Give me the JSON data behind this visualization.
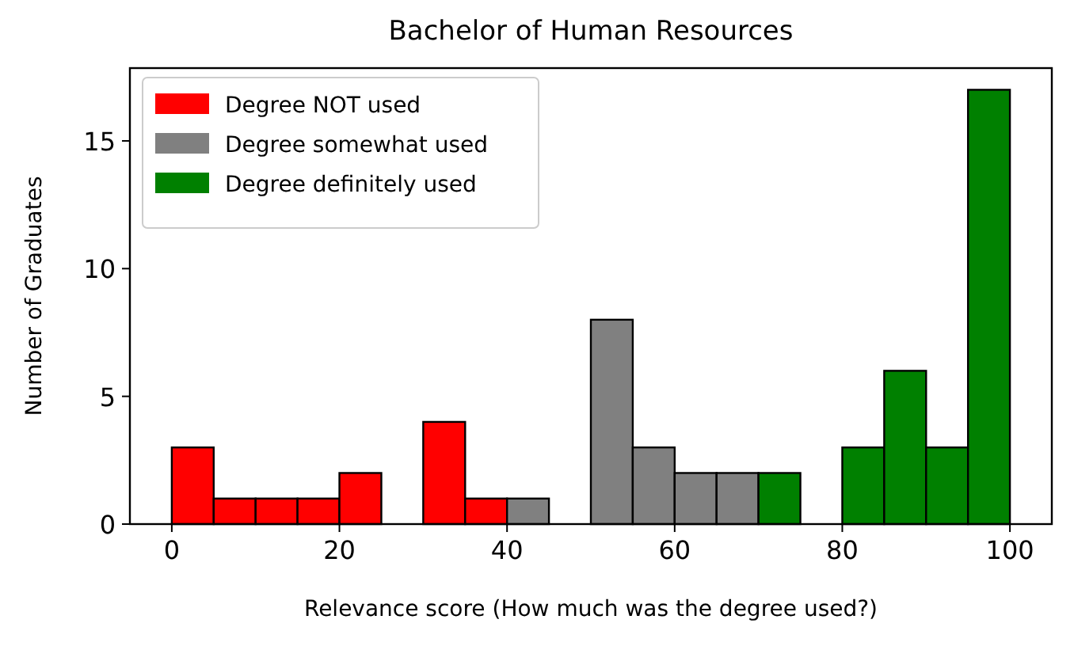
{
  "chart_data": {
    "type": "histogram",
    "title": "Bachelor of Human Resources",
    "xlabel": "Relevance score (How much was the degree used?)",
    "ylabel": "Number of Graduates",
    "bins": [
      0,
      5,
      10,
      15,
      20,
      25,
      30,
      35,
      40,
      45,
      50,
      55,
      60,
      65,
      70,
      75,
      80,
      85,
      90,
      95,
      100
    ],
    "series": [
      {
        "name": "Degree NOT used",
        "color": "#ff0000",
        "values": [
          3,
          1,
          1,
          1,
          2,
          0,
          4,
          1,
          null,
          null,
          null,
          null,
          null,
          null,
          null,
          null,
          null,
          null,
          null,
          null
        ]
      },
      {
        "name": "Degree somewhat used",
        "color": "#808080",
        "values": [
          null,
          null,
          null,
          null,
          null,
          null,
          null,
          null,
          1,
          0,
          8,
          3,
          2,
          2,
          null,
          null,
          null,
          null,
          null,
          null
        ]
      },
      {
        "name": "Degree definitely used",
        "color": "#008000",
        "values": [
          null,
          null,
          null,
          null,
          null,
          null,
          null,
          null,
          null,
          null,
          null,
          null,
          null,
          null,
          2,
          0,
          3,
          6,
          3,
          17
        ]
      }
    ],
    "xlim": [
      -5,
      105
    ],
    "xticks": [
      0,
      20,
      40,
      60,
      80,
      100
    ],
    "ylim": [
      0,
      17.85
    ],
    "yticks": [
      0,
      5,
      10,
      15
    ],
    "grid": false,
    "legend": "top left"
  }
}
